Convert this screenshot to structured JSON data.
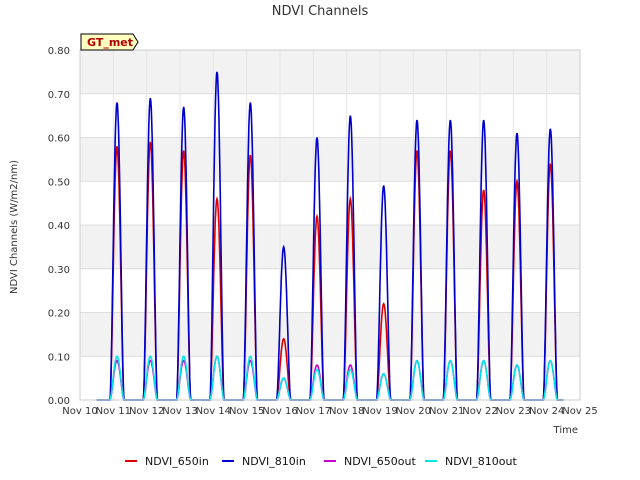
{
  "chart_data": {
    "type": "line",
    "title": "NDVI Channels",
    "xlabel": "Time",
    "ylabel": "NDVI Channels (W/m2/nm)",
    "badge": "GT_met",
    "ylim": [
      0,
      0.8
    ],
    "yticks": [
      0.0,
      0.1,
      0.2,
      0.3,
      0.4,
      0.5,
      0.6,
      0.7,
      0.8
    ],
    "ytick_labels": [
      "0.00",
      "0.10",
      "0.20",
      "0.30",
      "0.40",
      "0.50",
      "0.60",
      "0.70",
      "0.80"
    ],
    "xlim": [
      10,
      25
    ],
    "xticks": [
      10,
      11,
      12,
      13,
      14,
      15,
      16,
      17,
      18,
      19,
      20,
      21,
      22,
      23,
      24,
      25
    ],
    "xtick_labels": [
      "Nov 10",
      "Nov 11",
      "Nov 12",
      "Nov 13",
      "Nov 14",
      "Nov 15",
      "Nov 16",
      "Nov 17",
      "Nov 18",
      "Nov 19",
      "Nov 20",
      "Nov 21",
      "Nov 22",
      "Nov 23",
      "Nov 24",
      "Nov 25"
    ],
    "series": [
      {
        "name": "NDVI_650in",
        "color": "#dd0000",
        "daily_peak": [
          0.58,
          0.59,
          0.57,
          0.46,
          0.56,
          0.14,
          0.42,
          0.46,
          0.22,
          0.57,
          0.57,
          0.48,
          0.5,
          0.54
        ]
      },
      {
        "name": "NDVI_810in",
        "color": "#0000cc",
        "daily_peak": [
          0.68,
          0.69,
          0.67,
          0.75,
          0.68,
          0.35,
          0.6,
          0.65,
          0.49,
          0.64,
          0.64,
          0.64,
          0.61,
          0.62
        ]
      },
      {
        "name": "NDVI_650out",
        "color": "#cc00cc",
        "daily_peak": [
          0.09,
          0.09,
          0.09,
          0.1,
          0.09,
          0.05,
          0.08,
          0.08,
          0.06,
          0.09,
          0.09,
          0.09,
          0.08,
          0.09
        ]
      },
      {
        "name": "NDVI_810out",
        "color": "#00e5e5",
        "daily_peak": [
          0.1,
          0.1,
          0.1,
          0.1,
          0.1,
          0.05,
          0.07,
          0.07,
          0.06,
          0.09,
          0.09,
          0.09,
          0.08,
          0.09
        ]
      }
    ],
    "day_starts": [
      10.9,
      11.9,
      12.9,
      13.9,
      14.9,
      15.9,
      16.9,
      17.9,
      18.9,
      19.9,
      20.9,
      21.9,
      22.9,
      23.9
    ],
    "legend_position": "bottom"
  }
}
